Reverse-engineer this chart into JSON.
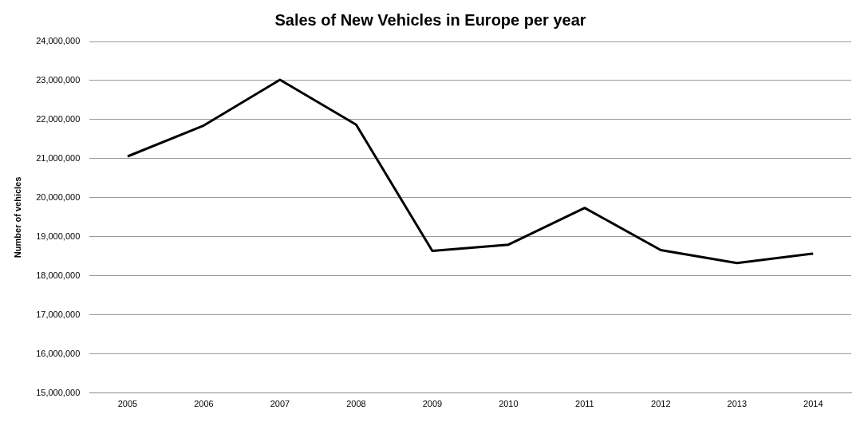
{
  "chart_data": {
    "type": "line",
    "title": "Sales of New Vehicles in Europe per year",
    "ylabel": "Number of vehicles",
    "categories": [
      "2005",
      "2006",
      "2007",
      "2008",
      "2009",
      "2010",
      "2011",
      "2012",
      "2013",
      "2014"
    ],
    "series": [
      {
        "color": "#000000",
        "values": [
          21060000,
          21850000,
          23020000,
          21870000,
          18640000,
          18800000,
          19740000,
          18660000,
          18330000,
          18570000
        ]
      }
    ],
    "ylim": [
      15000000,
      24000000
    ],
    "yticks": [
      {
        "value": 15000000,
        "label": "15,000,000"
      },
      {
        "value": 16000000,
        "label": "16,000,000"
      },
      {
        "value": 17000000,
        "label": "17,000,000"
      },
      {
        "value": 18000000,
        "label": "18,000,000"
      },
      {
        "value": 19000000,
        "label": "19,000,000"
      },
      {
        "value": 20000000,
        "label": "20,000,000"
      },
      {
        "value": 21000000,
        "label": "21,000,000"
      },
      {
        "value": 22000000,
        "label": "22,000,000"
      },
      {
        "value": 23000000,
        "label": "23,000,000"
      },
      {
        "value": 24000000,
        "label": "24,000,000"
      }
    ],
    "grid": "y",
    "legend": false,
    "marker": "none",
    "line_style": "solid"
  }
}
